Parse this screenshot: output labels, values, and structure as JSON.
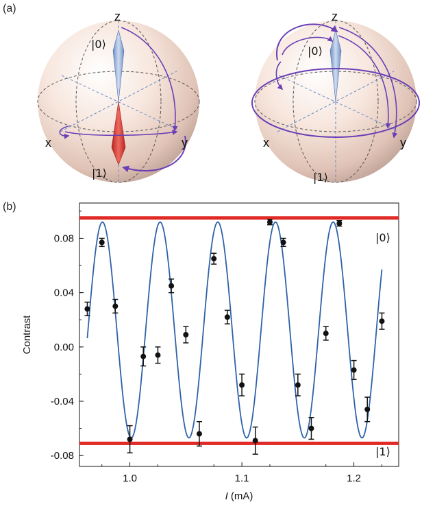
{
  "panels": {
    "a_label": "(a)",
    "b_label": "(b)"
  },
  "bloch": {
    "left": {
      "axis_z": "z",
      "axis_x": "x",
      "axis_y": "y",
      "ket0": "|0⟩",
      "ket1": "|1⟩"
    },
    "right": {
      "axis_z": "z",
      "axis_x": "x",
      "axis_y": "y",
      "ket0": "|0⟩",
      "ket1": "|1⟩"
    }
  },
  "colors": {
    "fit": "#2e62a8",
    "reference": "#e02a26",
    "points": "#111111",
    "arrow": "#6a3fb5",
    "state0_vector": "#9fb8dd",
    "state1_vector": "#d8403d"
  },
  "chart_data": {
    "type": "scatter",
    "xlabel_italic": "I",
    "xlabel_unit": " (mA)",
    "ylabel": "Contrast",
    "xlim": [
      0.955,
      1.24
    ],
    "ylim": [
      -0.088,
      0.106
    ],
    "x_ticks": [
      "1.0",
      "1.1",
      "1.2"
    ],
    "x_tick_values": [
      1.0,
      1.1,
      1.2
    ],
    "y_ticks": [
      "0.08",
      "0.04",
      "0.00",
      "-0.04",
      "-0.08"
    ],
    "y_tick_values": [
      0.08,
      0.04,
      0.0,
      -0.04,
      -0.08
    ],
    "reference_lines": [
      {
        "label": "|0⟩",
        "y": 0.095
      },
      {
        "label": "|1⟩",
        "y": -0.071
      }
    ],
    "series": [
      {
        "type": "scatter_with_errorbars",
        "points": [
          {
            "x": 0.962,
            "y": 0.028,
            "err": 0.005
          },
          {
            "x": 0.975,
            "y": 0.077,
            "err": 0.003
          },
          {
            "x": 0.987,
            "y": 0.03,
            "err": 0.005
          },
          {
            "x": 1.0,
            "y": -0.068,
            "err": 0.01
          },
          {
            "x": 1.012,
            "y": -0.007,
            "err": 0.007
          },
          {
            "x": 1.025,
            "y": -0.006,
            "err": 0.006
          },
          {
            "x": 1.037,
            "y": 0.045,
            "err": 0.005
          },
          {
            "x": 1.05,
            "y": 0.009,
            "err": 0.006
          },
          {
            "x": 1.062,
            "y": -0.064,
            "err": 0.009
          },
          {
            "x": 1.075,
            "y": 0.065,
            "err": 0.004
          },
          {
            "x": 1.087,
            "y": 0.022,
            "err": 0.005
          },
          {
            "x": 1.1,
            "y": -0.028,
            "err": 0.008
          },
          {
            "x": 1.112,
            "y": -0.069,
            "err": 0.01
          },
          {
            "x": 1.125,
            "y": 0.092,
            "err": 0.002
          },
          {
            "x": 1.137,
            "y": 0.077,
            "err": 0.003
          },
          {
            "x": 1.15,
            "y": -0.028,
            "err": 0.008
          },
          {
            "x": 1.162,
            "y": -0.06,
            "err": 0.008
          },
          {
            "x": 1.175,
            "y": 0.01,
            "err": 0.005
          },
          {
            "x": 1.187,
            "y": 0.091,
            "err": 0.002
          },
          {
            "x": 1.2,
            "y": -0.017,
            "err": 0.007
          },
          {
            "x": 1.212,
            "y": -0.046,
            "err": 0.009
          },
          {
            "x": 1.225,
            "y": 0.019,
            "err": 0.006
          }
        ]
      },
      {
        "type": "fit_line",
        "x_range": [
          0.962,
          1.225
        ],
        "offset": 0.0125,
        "amplitude": 0.0795,
        "period": 0.0515,
        "peak_x": 0.9755
      }
    ],
    "grid": false,
    "legend": "none"
  }
}
